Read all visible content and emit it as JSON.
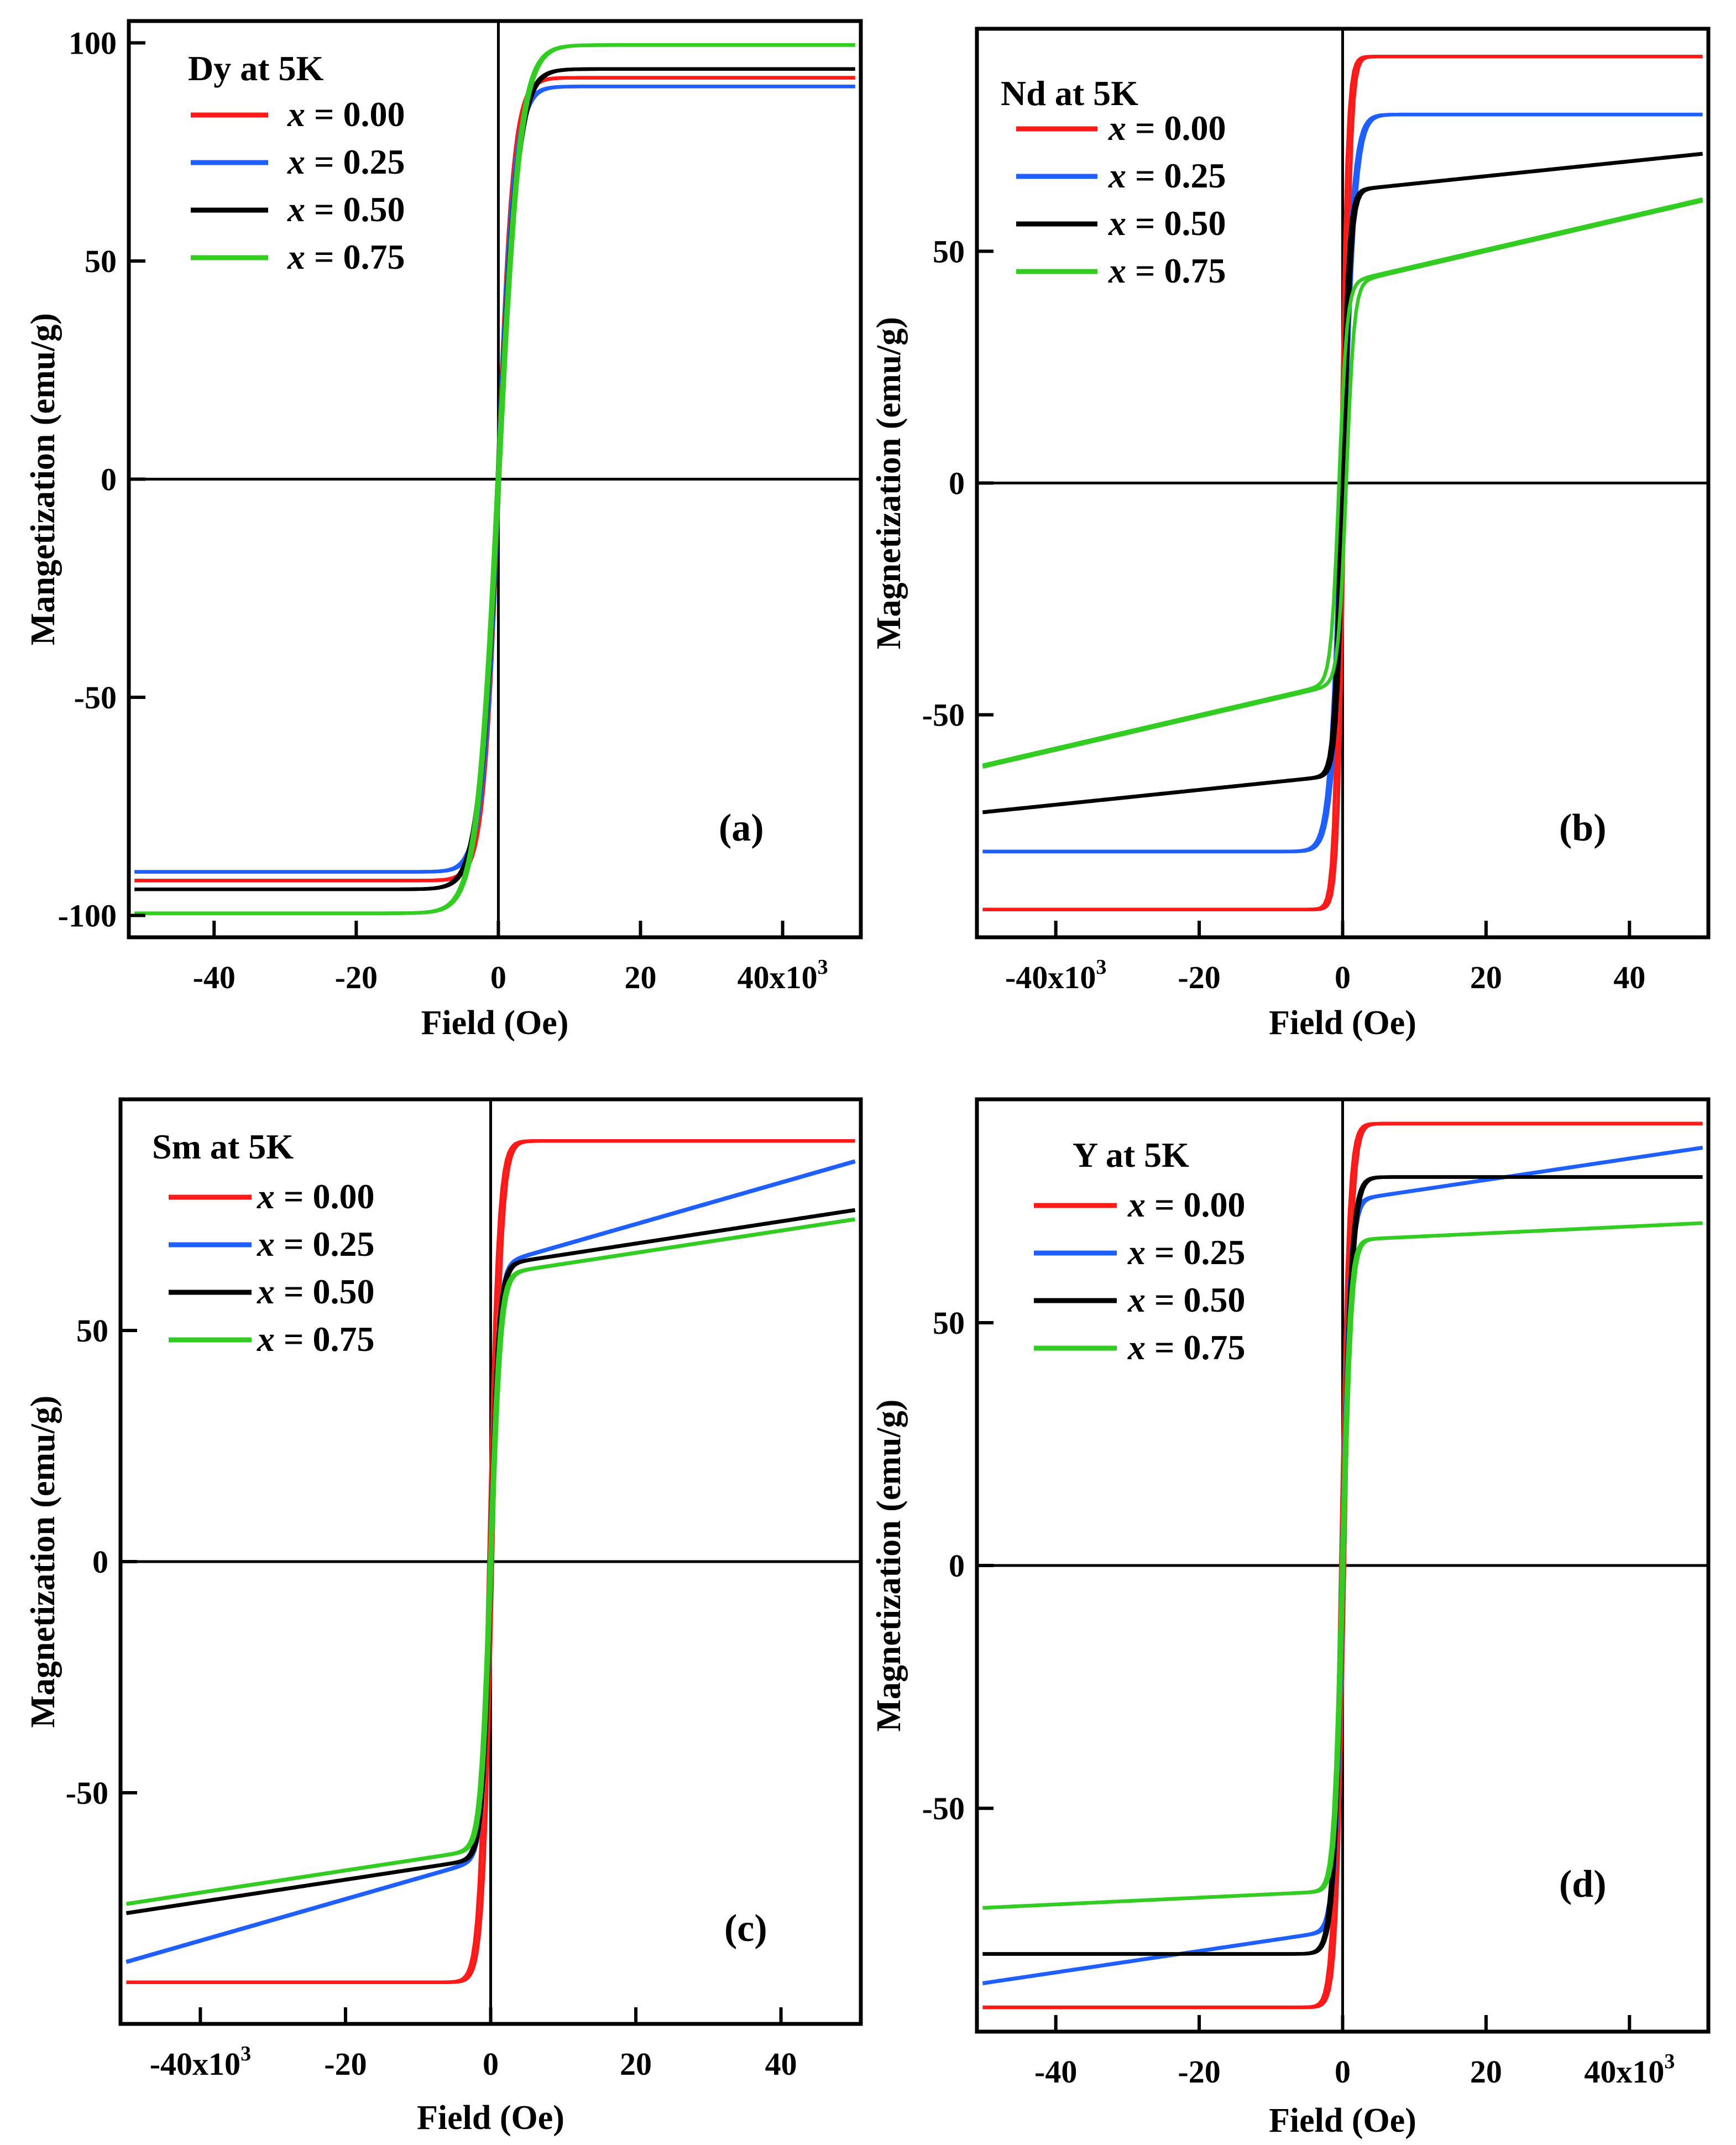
{
  "figure": {
    "colors": {
      "x000": "#ff1a1a",
      "x025": "#1f5fff",
      "x050": "#000000",
      "x075": "#33cc22"
    }
  },
  "chart_data": [
    {
      "panel": "(a)",
      "type": "line",
      "title": "Dy at 5K",
      "xlabel": "Field (Oe)",
      "ylabel": "Mangetization (emu/g)",
      "xlim": [
        -52000,
        51000
      ],
      "ylim": [
        -105,
        105
      ],
      "xticks": [
        -40000,
        -20000,
        0,
        20000,
        40000
      ],
      "xtick_labels": [
        "-40",
        "-20",
        "0",
        "20",
        "40x10^3"
      ],
      "yticks": [
        -100,
        -50,
        0,
        50,
        100
      ],
      "ytick_labels": [
        "-100",
        "-50",
        "0",
        "50",
        "100"
      ],
      "legend": "top-left",
      "label": "(a)",
      "series": [
        {
          "name": "x = 0.00",
          "color": "#ff1a1a",
          "Ms": 92,
          "H0": 2200,
          "k": 0,
          "hc": 150
        },
        {
          "name": "x = 0.25",
          "color": "#1f5fff",
          "Ms": 90,
          "H0": 2300,
          "k": 0,
          "hc": 150
        },
        {
          "name": "x = 0.50",
          "color": "#000000",
          "Ms": 94,
          "H0": 2700,
          "k": 0,
          "hc": 150
        },
        {
          "name": "x = 0.75",
          "color": "#33cc22",
          "Ms": 99.5,
          "H0": 3000,
          "k": 0,
          "hc": 150
        }
      ]
    },
    {
      "panel": "(b)",
      "type": "line",
      "title": "Nd at 5K",
      "xlabel": "Field (Oe)",
      "ylabel": "Magnetization (emu/g)",
      "xlim": [
        -51000,
        51000
      ],
      "ylim": [
        -98,
        98
      ],
      "xticks": [
        -40000,
        -20000,
        0,
        20000,
        40000
      ],
      "xtick_labels": [
        "-40x10^3",
        "-20",
        "0",
        "20",
        "40"
      ],
      "yticks": [
        -50,
        0,
        50
      ],
      "ytick_labels": [
        "-50",
        "0",
        "50"
      ],
      "legend": "top-left",
      "label": "(b)",
      "series": [
        {
          "name": "x = 0.00",
          "color": "#ff1a1a",
          "Ms": 92,
          "H0": 900,
          "k": 0,
          "hc": 250
        },
        {
          "name": "x = 0.25",
          "color": "#1f5fff",
          "Ms": 79.5,
          "H0": 1600,
          "k": 0,
          "hc": 200
        },
        {
          "name": "x = 0.50",
          "color": "#000000",
          "Ms": 63,
          "H0": 1000,
          "k": 0.00016,
          "hc": 200
        },
        {
          "name": "x = 0.75",
          "color": "#33cc22",
          "Ms": 43,
          "H0": 1100,
          "k": 0.00036,
          "hc": 500
        }
      ]
    },
    {
      "panel": "(c)",
      "type": "line",
      "title": "Sm at 5K",
      "xlabel": "Field (Oe)",
      "ylabel": "Magnetization (emu/g)",
      "xlim": [
        -51000,
        51000
      ],
      "ylim": [
        -100,
        100
      ],
      "xticks": [
        -40000,
        -20000,
        0,
        20000,
        40000
      ],
      "xtick_labels": [
        "-40x10^3",
        "-20",
        "0",
        "20",
        "40"
      ],
      "yticks": [
        -50,
        0,
        50
      ],
      "ytick_labels": [
        "-50",
        "0",
        "50"
      ],
      "legend": "top-left",
      "label": "(c)",
      "series": [
        {
          "name": "x = 0.00",
          "color": "#ff1a1a",
          "Ms": 91,
          "H0": 1300,
          "k": 0,
          "hc": 250
        },
        {
          "name": "x = 0.25",
          "color": "#1f5fff",
          "Ms": 64,
          "H0": 1200,
          "k": 0.00045,
          "hc": 150
        },
        {
          "name": "x = 0.50",
          "color": "#000000",
          "Ms": 64,
          "H0": 1200,
          "k": 0.00024,
          "hc": 150
        },
        {
          "name": "x = 0.75",
          "color": "#33cc22",
          "Ms": 62,
          "H0": 1300,
          "k": 0.00024,
          "hc": 150
        }
      ]
    },
    {
      "panel": "(d)",
      "type": "line",
      "title": "Y at 5K",
      "xlabel": "Field (Oe)",
      "ylabel": "Magnetization (emu/g)",
      "xlim": [
        -51000,
        51000
      ],
      "ylim": [
        -96,
        96
      ],
      "xticks": [
        -40000,
        -20000,
        0,
        20000,
        40000
      ],
      "xtick_labels": [
        "-40",
        "-20",
        "0",
        "20",
        "40x10^3"
      ],
      "yticks": [
        -50,
        0,
        50
      ],
      "ytick_labels": [
        "-50",
        "0",
        "50"
      ],
      "legend": "top-left",
      "label": "(d)",
      "series": [
        {
          "name": "x = 0.00",
          "color": "#ff1a1a",
          "Ms": 91,
          "H0": 1100,
          "k": 0,
          "hc": 250
        },
        {
          "name": "x = 0.25",
          "color": "#1f5fff",
          "Ms": 75,
          "H0": 1100,
          "k": 0.00022,
          "hc": 150
        },
        {
          "name": "x = 0.50",
          "color": "#000000",
          "Ms": 80,
          "H0": 1300,
          "k": 0,
          "hc": 150
        },
        {
          "name": "x = 0.75",
          "color": "#33cc22",
          "Ms": 67,
          "H0": 1100,
          "k": 7e-05,
          "hc": 150
        }
      ]
    }
  ]
}
